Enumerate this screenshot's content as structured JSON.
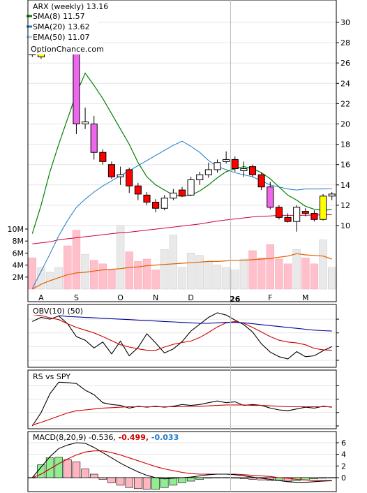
{
  "chart_data": [
    {
      "type": "candlestick",
      "panel": "price",
      "ticker_label": "ARX (weekly) 13.16",
      "watermark": "OptionChance.com",
      "yticks": [
        10,
        12,
        14,
        16,
        18,
        20,
        22,
        24,
        26,
        28,
        30
      ],
      "volume_ticks": [
        "2M",
        "4M",
        "6M",
        "8M",
        "10M"
      ],
      "volume_tick_values": [
        2,
        4,
        6,
        8,
        10
      ],
      "x_labels": [
        {
          "label": "A",
          "index": 1
        },
        {
          "label": "S",
          "index": 5
        },
        {
          "label": "O",
          "index": 10
        },
        {
          "label": "N",
          "index": 14
        },
        {
          "label": "D",
          "index": 18
        },
        {
          "label": "26",
          "index": 23,
          "bold": true
        },
        {
          "label": "F",
          "index": 27
        },
        {
          "label": "M",
          "index": 31
        }
      ],
      "legend": [
        {
          "name": "SMA(8) 11.57",
          "color": "#008000"
        },
        {
          "name": "SMA(20) 13.62",
          "color": "#1e78c8"
        },
        {
          "name": "EMA(50) 11.07",
          "color": "#a0d0f0"
        }
      ],
      "candles": [
        {
          "o": 27.0,
          "h": 27.3,
          "l": 26.6,
          "c": 26.8,
          "color": "white"
        },
        {
          "o": 26.6,
          "h": 27.2,
          "l": 26.4,
          "c": 27.0,
          "color": "yellow"
        },
        {
          "o": 27.0,
          "h": 27.2,
          "l": 26.8,
          "c": 27.1,
          "color": "white"
        },
        {
          "o": 27.1,
          "h": 27.4,
          "l": 26.9,
          "c": 27.2,
          "color": "white"
        },
        {
          "o": 27.2,
          "h": 30.0,
          "l": 26.9,
          "c": 27.5,
          "color": "white"
        },
        {
          "o": 27.5,
          "h": 27.8,
          "l": 19.0,
          "c": 20.0,
          "color": "magenta"
        },
        {
          "o": 20.0,
          "h": 21.6,
          "l": 19.5,
          "c": 20.2,
          "color": "white"
        },
        {
          "o": 20.0,
          "h": 20.8,
          "l": 16.5,
          "c": 17.2,
          "color": "magenta"
        },
        {
          "o": 17.2,
          "h": 17.5,
          "l": 16.0,
          "c": 16.3,
          "color": "red"
        },
        {
          "o": 16.0,
          "h": 16.3,
          "l": 14.6,
          "c": 14.8,
          "color": "red"
        },
        {
          "o": 14.8,
          "h": 15.8,
          "l": 14.0,
          "c": 15.0,
          "color": "white"
        },
        {
          "o": 15.5,
          "h": 15.7,
          "l": 13.2,
          "c": 13.9,
          "color": "red"
        },
        {
          "o": 13.9,
          "h": 14.2,
          "l": 12.5,
          "c": 13.1,
          "color": "red"
        },
        {
          "o": 13.0,
          "h": 13.3,
          "l": 12.0,
          "c": 12.3,
          "color": "red"
        },
        {
          "o": 12.3,
          "h": 12.6,
          "l": 11.3,
          "c": 11.7,
          "color": "red"
        },
        {
          "o": 11.7,
          "h": 13.0,
          "l": 11.5,
          "c": 12.7,
          "color": "white"
        },
        {
          "o": 12.7,
          "h": 13.6,
          "l": 12.5,
          "c": 13.2,
          "color": "white"
        },
        {
          "o": 13.5,
          "h": 13.8,
          "l": 12.8,
          "c": 12.9,
          "color": "red"
        },
        {
          "o": 13.0,
          "h": 14.8,
          "l": 12.9,
          "c": 14.5,
          "color": "white"
        },
        {
          "o": 14.5,
          "h": 15.3,
          "l": 14.0,
          "c": 15.0,
          "color": "white"
        },
        {
          "o": 15.0,
          "h": 16.2,
          "l": 14.7,
          "c": 15.5,
          "color": "white"
        },
        {
          "o": 15.5,
          "h": 16.5,
          "l": 15.2,
          "c": 16.2,
          "color": "white"
        },
        {
          "o": 16.3,
          "h": 17.3,
          "l": 16.1,
          "c": 16.5,
          "color": "white"
        },
        {
          "o": 16.5,
          "h": 16.8,
          "l": 15.3,
          "c": 15.6,
          "color": "red"
        },
        {
          "o": 15.6,
          "h": 16.3,
          "l": 14.8,
          "c": 15.4,
          "color": "white"
        },
        {
          "o": 15.8,
          "h": 16.0,
          "l": 14.8,
          "c": 15.0,
          "color": "red"
        },
        {
          "o": 15.0,
          "h": 15.2,
          "l": 13.5,
          "c": 13.8,
          "color": "red"
        },
        {
          "o": 13.8,
          "h": 14.3,
          "l": 11.6,
          "c": 11.8,
          "color": "magenta"
        },
        {
          "o": 11.8,
          "h": 12.0,
          "l": 10.6,
          "c": 10.8,
          "color": "red"
        },
        {
          "o": 10.8,
          "h": 11.2,
          "l": 10.3,
          "c": 10.4,
          "color": "red"
        },
        {
          "o": 10.4,
          "h": 12.0,
          "l": 9.4,
          "c": 11.8,
          "color": "white"
        },
        {
          "o": 11.4,
          "h": 11.7,
          "l": 10.9,
          "c": 11.2,
          "color": "red"
        },
        {
          "o": 11.2,
          "h": 11.5,
          "l": 10.4,
          "c": 10.6,
          "color": "red"
        },
        {
          "o": 10.6,
          "h": 13.1,
          "l": 10.5,
          "c": 12.9,
          "color": "yellow"
        },
        {
          "o": 12.9,
          "h": 13.3,
          "l": 12.5,
          "c": 13.1,
          "color": "white"
        }
      ],
      "sma8": [
        null,
        null,
        null,
        null,
        null,
        null,
        null,
        null,
        null,
        null,
        null,
        null,
        null,
        null,
        null,
        null,
        null,
        null,
        null,
        null,
        null,
        null,
        null,
        null,
        null,
        null,
        null,
        null,
        null,
        null,
        null,
        null,
        null,
        null,
        null
      ],
      "sma8_values": [
        9.2,
        12.0,
        15.3,
        18.0,
        20.5,
        23.0,
        25.0,
        23.8,
        22.5,
        21.0,
        19.5,
        18.0,
        16.2,
        14.8,
        14.0,
        13.5,
        13.0,
        12.9,
        13.0,
        13.4,
        14.0,
        14.7,
        15.3,
        15.6,
        15.8,
        15.6,
        15.2,
        14.6,
        13.8,
        13.0,
        12.5,
        11.9,
        11.6,
        11.5,
        11.57
      ],
      "sma20_values": [
        3.8,
        5.5,
        7.2,
        9.0,
        10.5,
        11.8,
        12.6,
        13.3,
        13.9,
        14.4,
        14.9,
        15.4,
        15.9,
        16.4,
        16.9,
        17.4,
        17.9,
        18.3,
        17.8,
        17.2,
        16.4,
        15.8,
        15.5,
        15.2,
        15.0,
        14.8,
        14.4,
        14.0,
        13.8,
        13.6,
        13.5,
        13.6,
        13.6,
        13.6,
        13.62
      ],
      "ema50_values": [
        8.2,
        8.3,
        8.4,
        8.6,
        8.7,
        8.8,
        8.9,
        9.0,
        9.1,
        9.2,
        9.3,
        9.35,
        9.45,
        9.55,
        9.65,
        9.75,
        9.85,
        9.95,
        10.05,
        10.15,
        10.3,
        10.45,
        10.55,
        10.65,
        10.75,
        10.85,
        10.9,
        10.95,
        11.0,
        11.0,
        11.0,
        11.02,
        11.04,
        11.05,
        11.07
      ],
      "volume_m": [
        5.2,
        3.6,
        2.8,
        3.6,
        7.2,
        9.8,
        5.8,
        4.8,
        4.2,
        3.2,
        10.6,
        6.2,
        4.6,
        5.0,
        3.2,
        6.6,
        9.0,
        3.6,
        6.0,
        5.6,
        4.6,
        4.0,
        3.6,
        3.2,
        5.0,
        6.4,
        5.2,
        7.4,
        5.0,
        4.2,
        6.6,
        5.2,
        4.2,
        8.2,
        3.6
      ],
      "volume_colors": [
        "p",
        "g",
        "g",
        "g",
        "p",
        "p",
        "g",
        "p",
        "p",
        "p",
        "g",
        "p",
        "p",
        "p",
        "p",
        "g",
        "g",
        "g",
        "g",
        "g",
        "g",
        "g",
        "g",
        "g",
        "g",
        "p",
        "p",
        "p",
        "p",
        "p",
        "g",
        "p",
        "p",
        "g",
        "g"
      ],
      "volume_ma_m": [
        0.0,
        0.8,
        1.4,
        1.9,
        2.4,
        2.7,
        2.8,
        3.0,
        3.2,
        3.3,
        3.4,
        3.6,
        3.7,
        3.9,
        4.0,
        4.1,
        4.2,
        4.3,
        4.4,
        4.5,
        4.6,
        4.6,
        4.7,
        4.8,
        4.8,
        4.9,
        5.0,
        5.1,
        5.3,
        5.5,
        5.9,
        5.7,
        5.6,
        5.5,
        5.0
      ]
    },
    {
      "type": "line",
      "panel": "obv",
      "label": "OBV(10) (50)",
      "series": [
        {
          "values": [
            8.5,
            9.4,
            9.0,
            9.7,
            8.0,
            5.2,
            4.4,
            2.7,
            4.0,
            1.4,
            4.2,
            1.0,
            2.8,
            5.8,
            3.8,
            1.6,
            2.5,
            4.1,
            6.4,
            7.9,
            9.4,
            10.4,
            9.9,
            8.8,
            7.8,
            6.2,
            3.6,
            1.8,
            0.8,
            0.3,
            1.9,
            0.8,
            1.0,
            2.1,
            3.0
          ],
          "color": "#000000"
        },
        {
          "values": [
            10.0,
            9.8,
            9.3,
            8.9,
            8.0,
            7.2,
            6.6,
            6.0,
            5.2,
            4.3,
            3.4,
            2.9,
            2.5,
            2.2,
            2.2,
            2.9,
            3.5,
            3.9,
            4.2,
            5.0,
            6.1,
            7.3,
            8.2,
            8.5,
            8.1,
            7.2,
            6.2,
            5.2,
            4.4,
            4.0,
            3.8,
            3.4,
            2.6,
            2.3,
            2.2
          ],
          "color": "#cc0000"
        },
        {
          "values": [
            null,
            null,
            null,
            9.8,
            9.6,
            9.5,
            9.4,
            9.3,
            9.2,
            9.1,
            9.0,
            8.9,
            8.8,
            8.7,
            8.6,
            8.5,
            8.4,
            8.3,
            8.2,
            8.1,
            8.1,
            8.2,
            8.3,
            8.3,
            8.2,
            8.0,
            7.8,
            7.6,
            7.4,
            7.2,
            7.0,
            6.8,
            6.6,
            6.5,
            6.4
          ],
          "color": "#000099"
        }
      ]
    },
    {
      "type": "line",
      "panel": "rs",
      "label": "RS vs SPY",
      "series": [
        {
          "values": [
            0.0,
            3.0,
            7.2,
            9.8,
            9.7,
            9.5,
            8.0,
            7.0,
            5.2,
            4.8,
            4.6,
            4.0,
            4.4,
            4.2,
            4.4,
            4.2,
            4.4,
            4.8,
            4.6,
            4.8,
            5.2,
            5.6,
            5.2,
            5.4,
            4.6,
            4.8,
            4.6,
            4.0,
            3.6,
            3.4,
            3.8,
            4.2,
            4.0,
            4.4,
            4.2
          ],
          "color": "#000000"
        },
        {
          "values": [
            0.2,
            0.8,
            1.5,
            2.2,
            2.9,
            3.4,
            3.6,
            3.8,
            4.0,
            4.1,
            4.2,
            4.3,
            4.3,
            4.3,
            4.3,
            4.3,
            4.3,
            4.3,
            4.4,
            4.4,
            4.5,
            4.6,
            4.7,
            4.7,
            4.7,
            4.6,
            4.6,
            4.5,
            4.4,
            4.3,
            4.3,
            4.3,
            4.3,
            4.3,
            4.3
          ],
          "color": "#cc0000"
        }
      ]
    },
    {
      "type": "line",
      "panel": "macd",
      "label_prefix": "MACD(8,20,9) -0.536,",
      "label_signal": "-0.499,",
      "label_hist": "-0.033",
      "signal_color": "#cc0000",
      "hist_color": "#1e78c8",
      "yticks": [
        0,
        2,
        4,
        6
      ],
      "macd": [
        0.0,
        1.8,
        3.6,
        5.0,
        5.6,
        6.0,
        5.9,
        5.2,
        4.3,
        3.4,
        2.5,
        1.7,
        1.0,
        0.4,
        0.0,
        -0.2,
        -0.1,
        0.0,
        0.1,
        0.3,
        0.5,
        0.6,
        0.6,
        0.5,
        0.3,
        0.1,
        -0.1,
        -0.3,
        -0.5,
        -0.7,
        -0.8,
        -0.8,
        -0.7,
        -0.6,
        -0.536
      ],
      "signal": [
        0.0,
        0.6,
        1.5,
        2.4,
        3.2,
        3.9,
        4.4,
        4.6,
        4.6,
        4.3,
        3.9,
        3.4,
        2.9,
        2.4,
        1.9,
        1.5,
        1.2,
        0.9,
        0.7,
        0.6,
        0.6,
        0.6,
        0.6,
        0.6,
        0.5,
        0.4,
        0.3,
        0.2,
        0.0,
        -0.1,
        -0.3,
        -0.4,
        -0.5,
        -0.5,
        -0.499
      ],
      "hist": [
        0.0,
        2.2,
        3.4,
        3.5,
        3.1,
        2.7,
        1.5,
        0.6,
        -0.3,
        -0.9,
        -1.3,
        -1.7,
        -1.9,
        -2.0,
        -2.0,
        -1.7,
        -1.3,
        -0.9,
        -0.6,
        -0.3,
        -0.1,
        0.0,
        0.0,
        -0.1,
        -0.2,
        -0.3,
        -0.4,
        -0.5,
        -0.5,
        -0.6,
        -0.5,
        -0.4,
        -0.2,
        -0.1,
        -0.033
      ]
    }
  ]
}
